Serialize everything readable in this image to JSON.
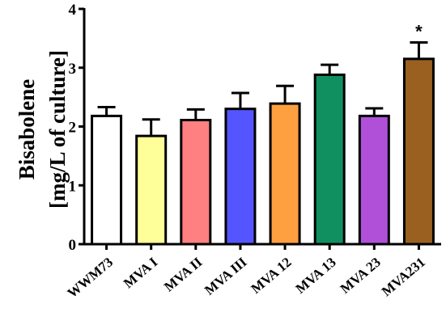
{
  "chart_data": {
    "type": "bar",
    "ylabel_line1": "Bisabolene",
    "ylabel_line2": "[mg/L of culture]",
    "ylim": [
      0,
      4
    ],
    "yticks": [
      "0",
      "1",
      "2",
      "3",
      "4"
    ],
    "grid": false,
    "categories": [
      "WWM73",
      "MVA I",
      "MVA II",
      "MVA III",
      "MVA 12",
      "MVA 13",
      "MVA 23",
      "MVA231"
    ],
    "values": [
      2.18,
      1.84,
      2.11,
      2.3,
      2.39,
      2.88,
      2.18,
      3.15
    ],
    "errors": [
      0.15,
      0.28,
      0.18,
      0.27,
      0.3,
      0.17,
      0.13,
      0.28
    ],
    "colors": [
      "#ffffff",
      "#ffff99",
      "#ff8080",
      "#5555ff",
      "#ffa040",
      "#109060",
      "#b050d8",
      "#996020"
    ],
    "annotations": [
      {
        "category": "MVA231",
        "text": "*"
      }
    ]
  }
}
